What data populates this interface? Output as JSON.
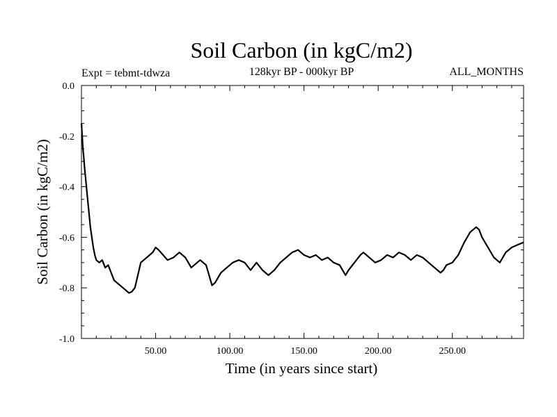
{
  "chart_data": {
    "type": "line",
    "title": "Soil Carbon (in kgC/m2)",
    "subtitle": "128kyr BP - 000kyr BP",
    "left_label": "Expt = tebmt-tdwza",
    "right_label": "ALL_MONTHS",
    "xlabel": "Time (in years since start)",
    "ylabel": "Soil Carbon (in kgC/m2)",
    "xlim": [
      0,
      298
    ],
    "ylim": [
      -1.0,
      0.0
    ],
    "x_ticks": [
      50,
      100,
      150,
      200,
      250
    ],
    "x_tick_labels": [
      "50.00",
      "100.00",
      "150.00",
      "200.00",
      "250.00"
    ],
    "y_ticks": [
      0.0,
      -0.2,
      -0.4,
      -0.6,
      -0.8,
      -1.0
    ],
    "y_tick_labels": [
      "0.0",
      "-0.2",
      "-0.4",
      "-0.6",
      "-0.8",
      "-1.0"
    ],
    "series": [
      {
        "name": "Soil Carbon",
        "color": "#000000",
        "x": [
          0,
          0.5,
          1,
          1.5,
          2,
          3,
          4,
          5,
          6,
          7,
          8,
          9,
          10,
          12,
          14,
          16,
          18,
          20,
          22,
          24,
          26,
          28,
          30,
          32,
          34,
          36,
          38,
          40,
          44,
          48,
          50,
          52,
          55,
          58,
          62,
          66,
          70,
          74,
          78,
          80,
          84,
          86,
          88,
          90,
          94,
          98,
          102,
          106,
          110,
          114,
          118,
          122,
          126,
          130,
          134,
          138,
          142,
          146,
          150,
          154,
          158,
          162,
          166,
          170,
          174,
          178,
          180,
          184,
          188,
          190,
          194,
          198,
          202,
          206,
          210,
          214,
          218,
          222,
          226,
          230,
          234,
          238,
          242,
          244,
          246,
          250,
          254,
          258,
          262,
          266,
          268,
          270,
          274,
          278,
          282,
          286,
          290,
          294,
          298
        ],
        "values": [
          -0.15,
          -0.2,
          -0.25,
          -0.28,
          -0.32,
          -0.38,
          -0.44,
          -0.5,
          -0.56,
          -0.6,
          -0.64,
          -0.67,
          -0.69,
          -0.7,
          -0.69,
          -0.72,
          -0.71,
          -0.74,
          -0.77,
          -0.78,
          -0.79,
          -0.8,
          -0.81,
          -0.82,
          -0.815,
          -0.8,
          -0.75,
          -0.7,
          -0.68,
          -0.66,
          -0.64,
          -0.65,
          -0.67,
          -0.69,
          -0.68,
          -0.66,
          -0.68,
          -0.72,
          -0.7,
          -0.69,
          -0.71,
          -0.75,
          -0.79,
          -0.78,
          -0.74,
          -0.72,
          -0.7,
          -0.69,
          -0.7,
          -0.73,
          -0.7,
          -0.73,
          -0.75,
          -0.73,
          -0.7,
          -0.68,
          -0.66,
          -0.65,
          -0.67,
          -0.68,
          -0.67,
          -0.69,
          -0.68,
          -0.7,
          -0.71,
          -0.75,
          -0.73,
          -0.7,
          -0.67,
          -0.66,
          -0.68,
          -0.7,
          -0.69,
          -0.67,
          -0.68,
          -0.66,
          -0.67,
          -0.69,
          -0.67,
          -0.68,
          -0.7,
          -0.72,
          -0.74,
          -0.73,
          -0.71,
          -0.7,
          -0.67,
          -0.62,
          -0.58,
          -0.56,
          -0.57,
          -0.6,
          -0.64,
          -0.68,
          -0.7,
          -0.66,
          -0.64,
          -0.63,
          -0.62
        ]
      }
    ]
  }
}
